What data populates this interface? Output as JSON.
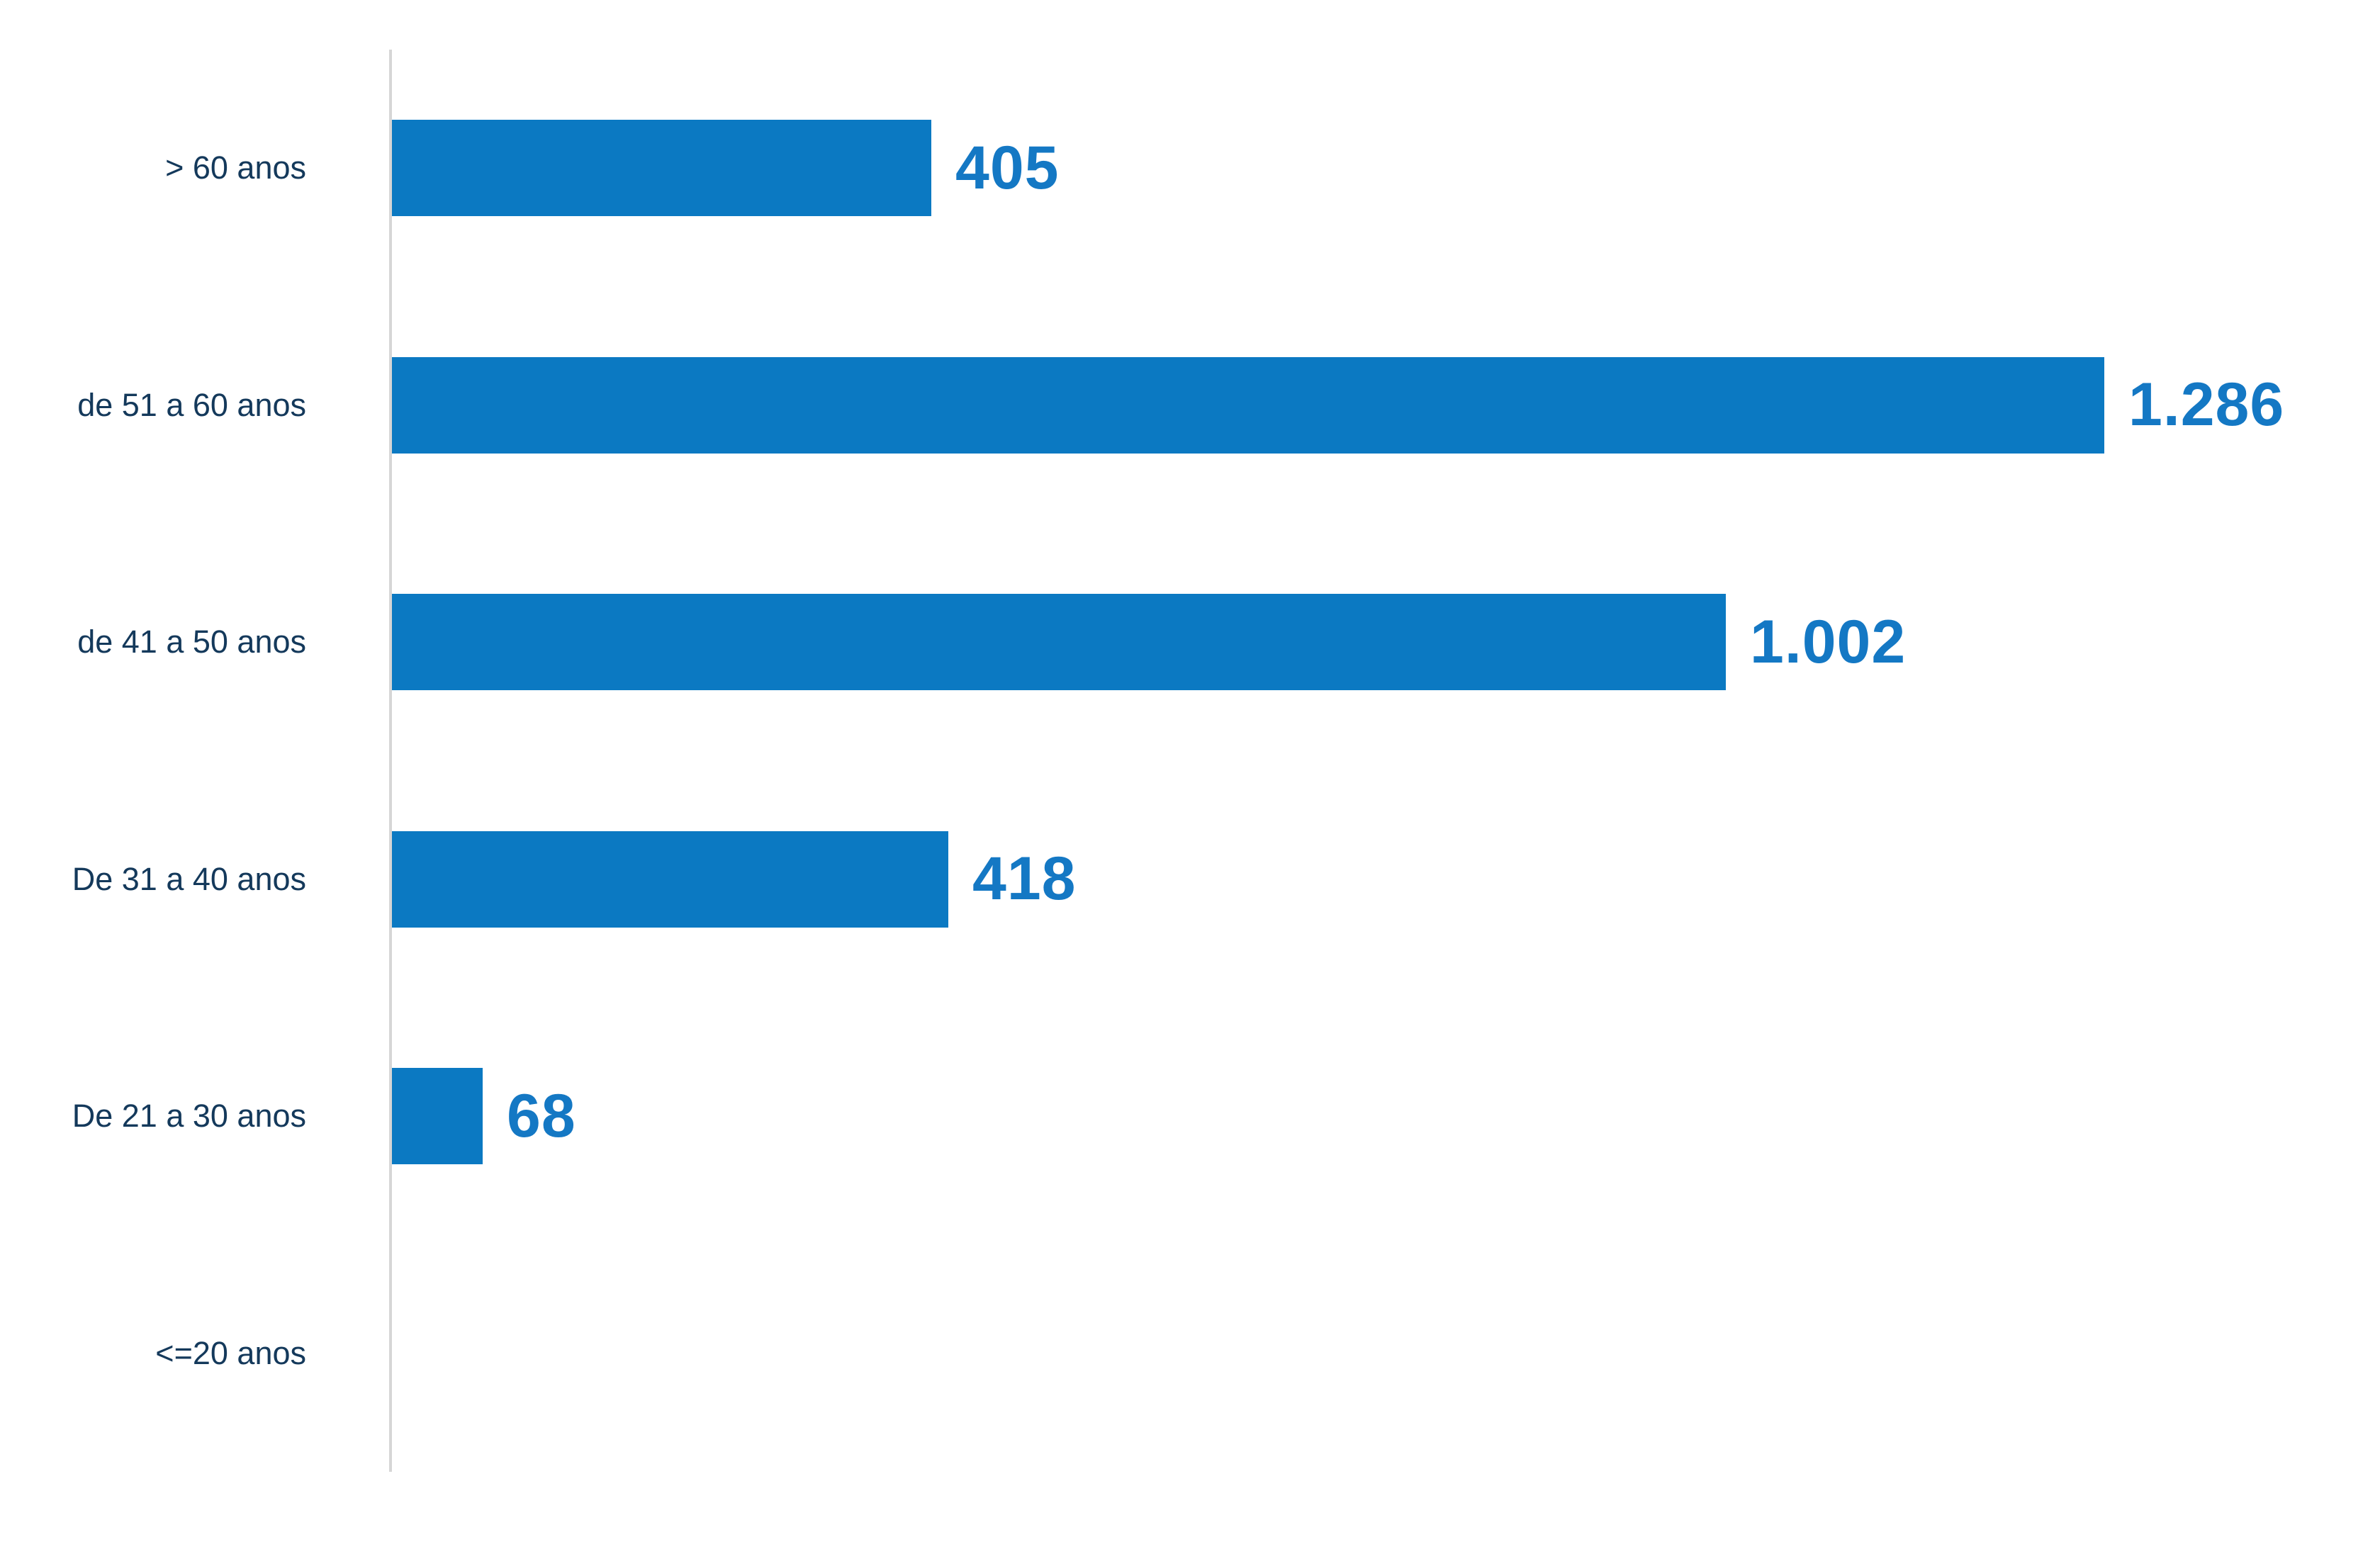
{
  "colors": {
    "bar": "#0b79c2",
    "value_text": "#1478c4",
    "category_text": "#14395b",
    "axis_line": "#d6d6d6",
    "background": "#ffffff"
  },
  "chart_data": {
    "type": "bar",
    "orientation": "horizontal",
    "title": "",
    "xlabel": "",
    "ylabel": "",
    "grid": false,
    "legend": false,
    "axis_position": "left",
    "xlim": [
      0,
      1350
    ],
    "categories": [
      "> 60 anos",
      "de 51 a 60 anos",
      "de 41 a 50 anos",
      "De 31 a 40 anos",
      "De 21 a 30 anos",
      "<=20 anos"
    ],
    "values": [
      405,
      1286,
      1002,
      418,
      68,
      0
    ],
    "value_labels": [
      "405",
      "1.286",
      "1.002",
      "418",
      "68",
      ""
    ]
  }
}
